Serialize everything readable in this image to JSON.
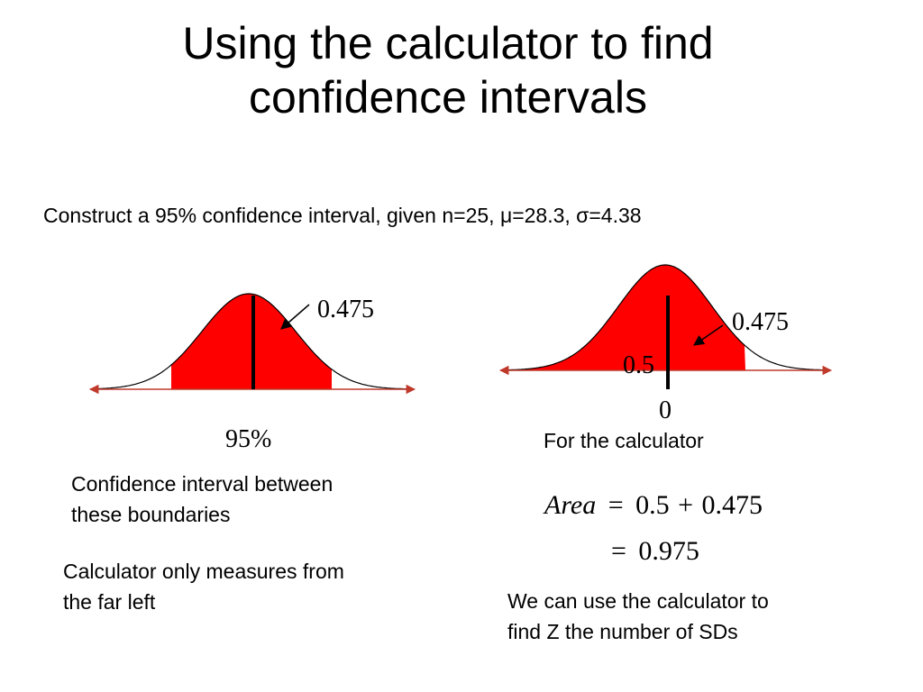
{
  "title": {
    "line1": "Using the calculator to find",
    "line2": "confidence intervals"
  },
  "prompt": "Construct a 95% confidence interval, given n=25, μ=28.3, σ=4.38",
  "left_diagram": {
    "area_label": "0.475",
    "percent_label": "95%",
    "caption_line1": "Confidence interval between",
    "caption_line2": "these boundaries",
    "note_line1": "Calculator only measures from",
    "note_line2": "the far left"
  },
  "right_diagram": {
    "area_label": "0.475",
    "left_area_label": "0.5",
    "zero_label": "0",
    "caption": "For the calculator",
    "equation1": {
      "lhs": "Area",
      "op": "=",
      "a": "0.5",
      "plus": "+",
      "b": "0.475"
    },
    "equation2": {
      "op": "=",
      "result": "0.975"
    },
    "note_line1": "We can use the calculator to",
    "note_line2": "find Z the number of SDs"
  },
  "colors": {
    "shade": "#ff0000",
    "arrow": "#c0392b",
    "ink": "#000000"
  }
}
